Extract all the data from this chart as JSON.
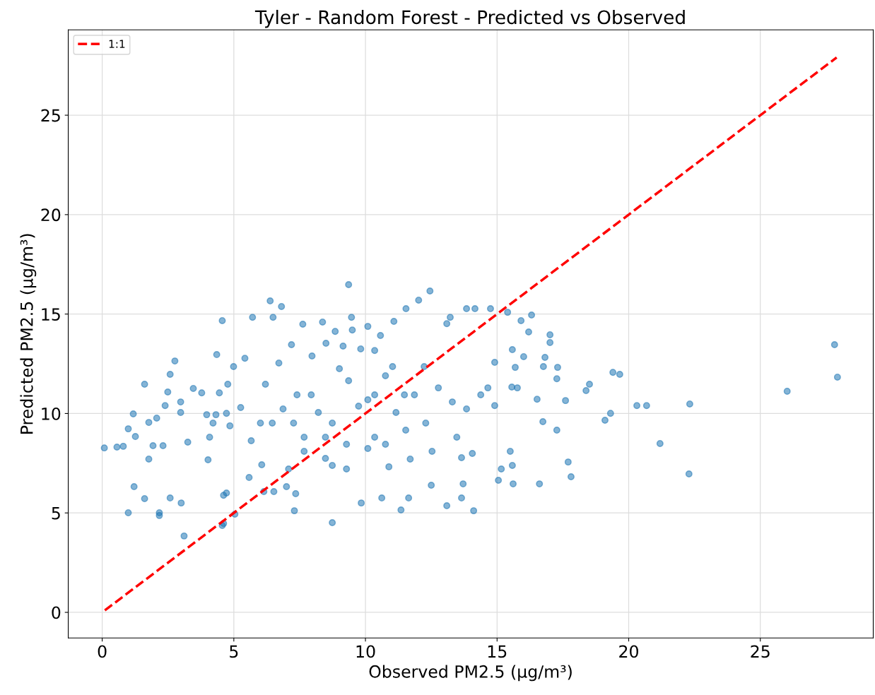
{
  "chart_data": {
    "type": "scatter",
    "title": "Tyler - Random Forest - Predicted vs Observed",
    "xlabel": "Observed PM2.5 (µg/m³)",
    "ylabel": "Predicted PM2.5 (µg/m³)",
    "xlim": [
      -1.29,
      29.29
    ],
    "ylim": [
      -1.29,
      29.29
    ],
    "xticks": [
      0,
      5,
      10,
      15,
      20,
      25
    ],
    "yticks": [
      0,
      5,
      10,
      15,
      20,
      25
    ],
    "grid": true,
    "legend": "top left",
    "series": [
      {
        "marker": "circle",
        "color": "#1f77b4",
        "x": [
          27.82,
          27.93,
          26.02,
          22.32,
          22.29,
          21.19,
          20.68,
          20.31,
          19.66,
          19.4,
          19.31,
          19.1,
          18.51,
          18.38,
          17.81,
          17.7,
          17.6,
          17.27,
          17.3,
          17.01,
          17.01,
          17.27,
          16.82,
          16.76,
          16.74,
          16.61,
          16.52,
          16.31,
          16.2,
          15.91,
          16.01,
          15.69,
          15.58,
          15.5,
          15.58,
          15.61,
          15.56,
          15.77,
          15.16,
          15.05,
          14.91,
          14.91,
          15.4,
          14.75,
          14.16,
          13.84,
          14.11,
          14.06,
          13.65,
          13.47,
          13.22,
          13.09,
          12.45,
          12.02,
          11.54,
          11.08,
          10.57,
          10.35,
          10.09,
          9.36,
          9.47,
          9.5,
          8.74,
          9.84,
          10.62,
          11.35,
          11.64,
          13.09,
          13.65,
          13.71,
          12.5,
          11.7,
          10.89,
          10.09,
          9.28,
          8.48,
          7.67,
          7.3,
          7.35,
          7.0,
          7.08,
          6.06,
          5.66,
          5.58,
          6.14,
          6.52,
          5.04,
          4.61,
          4.61,
          4.72,
          4.56,
          3.0,
          2.58,
          2.17,
          2.17,
          1.21,
          0.99,
          1.61,
          3.11,
          0.08,
          0.56,
          0.8,
          1.26,
          0.99,
          1.18,
          1.61,
          1.77,
          1.77,
          1.93,
          2.31,
          2.07,
          2.39,
          2.49,
          2.58,
          2.76,
          2.98,
          2.98,
          3.25,
          3.46,
          3.78,
          3.97,
          4.08,
          4.02,
          4.21,
          4.32,
          4.45,
          4.56,
          4.35,
          4.72,
          4.77,
          4.85,
          4.99,
          5.26,
          5.42,
          5.71,
          6.01,
          6.38,
          6.49,
          6.81,
          6.71,
          7.19,
          7.62,
          7.97,
          8.37,
          8.5,
          8.85,
          9.01,
          9.15,
          9.36,
          9.82,
          9.74,
          10.09,
          10.35,
          10.76,
          11.03,
          11.16,
          11.48,
          11.86,
          12.23,
          12.77,
          13.3,
          13.84,
          14.38,
          14.65,
          12.29,
          12.53,
          11.53,
          10.76,
          10.35,
          8.74,
          8.21,
          7.94,
          7.4,
          6.87,
          6.46,
          6.2,
          7.27,
          8.74,
          9.28,
          8.48,
          7.67
        ],
        "values": [
          13.46,
          11.83,
          11.12,
          10.48,
          6.96,
          8.49,
          10.4,
          10.4,
          11.97,
          12.07,
          10.01,
          9.66,
          11.47,
          11.15,
          6.82,
          7.56,
          10.65,
          11.75,
          12.32,
          13.96,
          13.57,
          9.16,
          12.82,
          12.36,
          9.59,
          6.46,
          10.72,
          14.95,
          14.1,
          14.67,
          12.86,
          12.32,
          13.21,
          8.1,
          7.39,
          6.46,
          11.33,
          11.29,
          7.21,
          6.64,
          12.57,
          10.4,
          15.09,
          15.27,
          15.27,
          15.27,
          5.11,
          7.99,
          7.78,
          8.81,
          14.84,
          14.52,
          16.16,
          15.7,
          15.27,
          14.63,
          13.92,
          13.17,
          14.38,
          16.48,
          14.84,
          14.2,
          4.51,
          5.5,
          5.75,
          5.15,
          5.75,
          5.36,
          5.75,
          6.46,
          6.39,
          7.71,
          7.32,
          8.24,
          8.45,
          8.81,
          8.1,
          5.11,
          5.97,
          6.32,
          7.21,
          7.42,
          8.63,
          6.78,
          6.07,
          6.07,
          4.94,
          4.47,
          5.89,
          6.0,
          4.37,
          5.5,
          5.75,
          5.01,
          4.87,
          6.32,
          5.01,
          5.72,
          3.84,
          8.27,
          8.31,
          8.35,
          8.84,
          9.23,
          9.98,
          11.47,
          9.55,
          7.71,
          8.38,
          8.38,
          9.77,
          10.4,
          11.08,
          11.97,
          12.64,
          10.05,
          10.58,
          8.56,
          11.26,
          11.04,
          9.94,
          8.81,
          7.67,
          9.52,
          9.94,
          11.04,
          14.67,
          12.96,
          10.01,
          11.47,
          9.38,
          12.36,
          10.3,
          12.78,
          14.84,
          9.52,
          15.66,
          14.84,
          15.38,
          12.54,
          13.46,
          14.49,
          12.89,
          14.6,
          13.53,
          14.13,
          12.25,
          13.39,
          11.65,
          13.25,
          10.37,
          10.69,
          10.94,
          11.9,
          12.36,
          10.05,
          10.94,
          10.94,
          12.36,
          11.29,
          10.58,
          10.23,
          10.94,
          11.29,
          9.52,
          8.1,
          9.16,
          8.45,
          8.81,
          9.52,
          10.05,
          10.94,
          10.94,
          10.23,
          9.52,
          11.47,
          9.52,
          7.39,
          7.21,
          7.74,
          8.81
        ]
      },
      {
        "type": "line",
        "name": "1:1",
        "color": "#ff0000",
        "line_style": "dashed",
        "x": [
          0.1,
          27.9
        ],
        "values": [
          0.1,
          27.9
        ]
      }
    ]
  }
}
